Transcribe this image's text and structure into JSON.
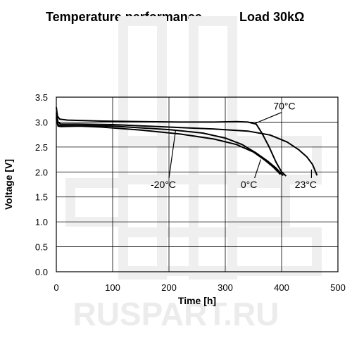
{
  "chart_data": {
    "type": "line",
    "title": "Temperature performance",
    "subtitle": "Load 30kΩ",
    "xlabel": "Time [h]",
    "ylabel": "Voltage [V]",
    "xlim": [
      0,
      500
    ],
    "ylim": [
      0,
      3.5
    ],
    "x_ticks": [
      0,
      100,
      200,
      300,
      400,
      500
    ],
    "y_ticks": [
      0.0,
      0.5,
      1.0,
      1.5,
      2.0,
      2.5,
      3.0,
      3.5
    ],
    "grid": true,
    "line_color": "#000000",
    "watermark": "RUSPART.RU",
    "series": [
      {
        "name": "70°C",
        "label_pos": [
          405,
          3.25
        ],
        "leader_to": [
          352,
          2.97
        ],
        "points": [
          [
            0,
            3.3
          ],
          [
            2,
            3.12
          ],
          [
            6,
            3.06
          ],
          [
            20,
            3.04
          ],
          [
            80,
            3.02
          ],
          [
            150,
            3.01
          ],
          [
            220,
            3.0
          ],
          [
            280,
            3.0
          ],
          [
            320,
            3.01
          ],
          [
            340,
            3.0
          ],
          [
            355,
            2.96
          ],
          [
            365,
            2.78
          ],
          [
            378,
            2.5
          ],
          [
            390,
            2.2
          ],
          [
            400,
            2.0
          ],
          [
            408,
            1.92
          ]
        ]
      },
      {
        "name": "23°C",
        "label_pos": [
          443,
          1.68
        ],
        "leader_to": [
          453,
          2.05
        ],
        "points": [
          [
            0,
            3.18
          ],
          [
            3,
            3.0
          ],
          [
            8,
            2.96
          ],
          [
            40,
            2.96
          ],
          [
            100,
            2.95
          ],
          [
            200,
            2.9
          ],
          [
            280,
            2.86
          ],
          [
            340,
            2.82
          ],
          [
            380,
            2.74
          ],
          [
            410,
            2.6
          ],
          [
            430,
            2.45
          ],
          [
            445,
            2.3
          ],
          [
            455,
            2.15
          ],
          [
            463,
            1.93
          ]
        ]
      },
      {
        "name": "0°C",
        "label_pos": [
          342,
          1.68
        ],
        "leader_to": [
          363,
          2.25
        ],
        "points": [
          [
            0,
            3.12
          ],
          [
            3,
            2.95
          ],
          [
            8,
            2.93
          ],
          [
            40,
            2.93
          ],
          [
            100,
            2.92
          ],
          [
            200,
            2.85
          ],
          [
            260,
            2.78
          ],
          [
            300,
            2.68
          ],
          [
            330,
            2.55
          ],
          [
            355,
            2.38
          ],
          [
            375,
            2.22
          ],
          [
            390,
            2.08
          ],
          [
            398,
            1.98
          ],
          [
            403,
            1.93
          ]
        ]
      },
      {
        "name": "-20°C",
        "label_pos": [
          190,
          1.68
        ],
        "leader_to": [
          212,
          2.85
        ],
        "points": [
          [
            0,
            3.08
          ],
          [
            3,
            2.92
          ],
          [
            8,
            2.91
          ],
          [
            40,
            2.92
          ],
          [
            80,
            2.9
          ],
          [
            150,
            2.84
          ],
          [
            220,
            2.76
          ],
          [
            280,
            2.66
          ],
          [
            320,
            2.55
          ],
          [
            350,
            2.4
          ],
          [
            370,
            2.24
          ],
          [
            385,
            2.1
          ],
          [
            398,
            1.95
          ]
        ]
      }
    ]
  }
}
